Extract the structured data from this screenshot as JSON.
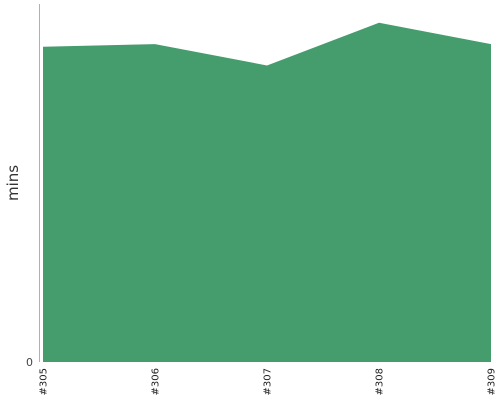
{
  "chart_data": {
    "type": "area",
    "categories": [
      "#305",
      "#306",
      "#307",
      "#308",
      "#309"
    ],
    "series": [
      {
        "values": [
          118,
          119,
          111,
          127,
          119
        ]
      }
    ],
    "ylabel": "mins",
    "xlabel": "",
    "ylim": [
      0,
      134
    ],
    "y_ticks": [
      "0"
    ],
    "grid": false,
    "colors": {
      "area": "#459c6d",
      "axis": "#b0b0b0"
    }
  }
}
